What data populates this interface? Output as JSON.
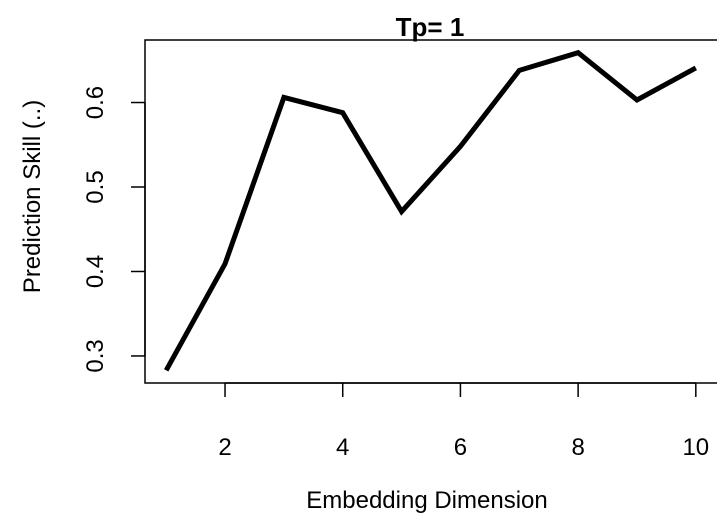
{
  "chart_data": {
    "type": "line",
    "title": "Tp= 1",
    "xlabel": "Embedding Dimension",
    "ylabel": "Prediction Skill (..)",
    "x": [
      1,
      2,
      3,
      4,
      5,
      6,
      7,
      8,
      9,
      10
    ],
    "series": [
      {
        "values": [
          0.283,
          0.409,
          0.606,
          0.588,
          0.471,
          0.548,
          0.638,
          0.659,
          0.603,
          0.641
        ]
      }
    ],
    "xticks": [
      "2",
      "4",
      "6",
      "8",
      "10"
    ],
    "yticks": [
      "0.3",
      "0.4",
      "0.5",
      "0.6"
    ],
    "xlim": [
      0.64,
      10.36
    ],
    "ylim": [
      0.268,
      0.674
    ],
    "grid": false,
    "line_color": "#000000"
  }
}
